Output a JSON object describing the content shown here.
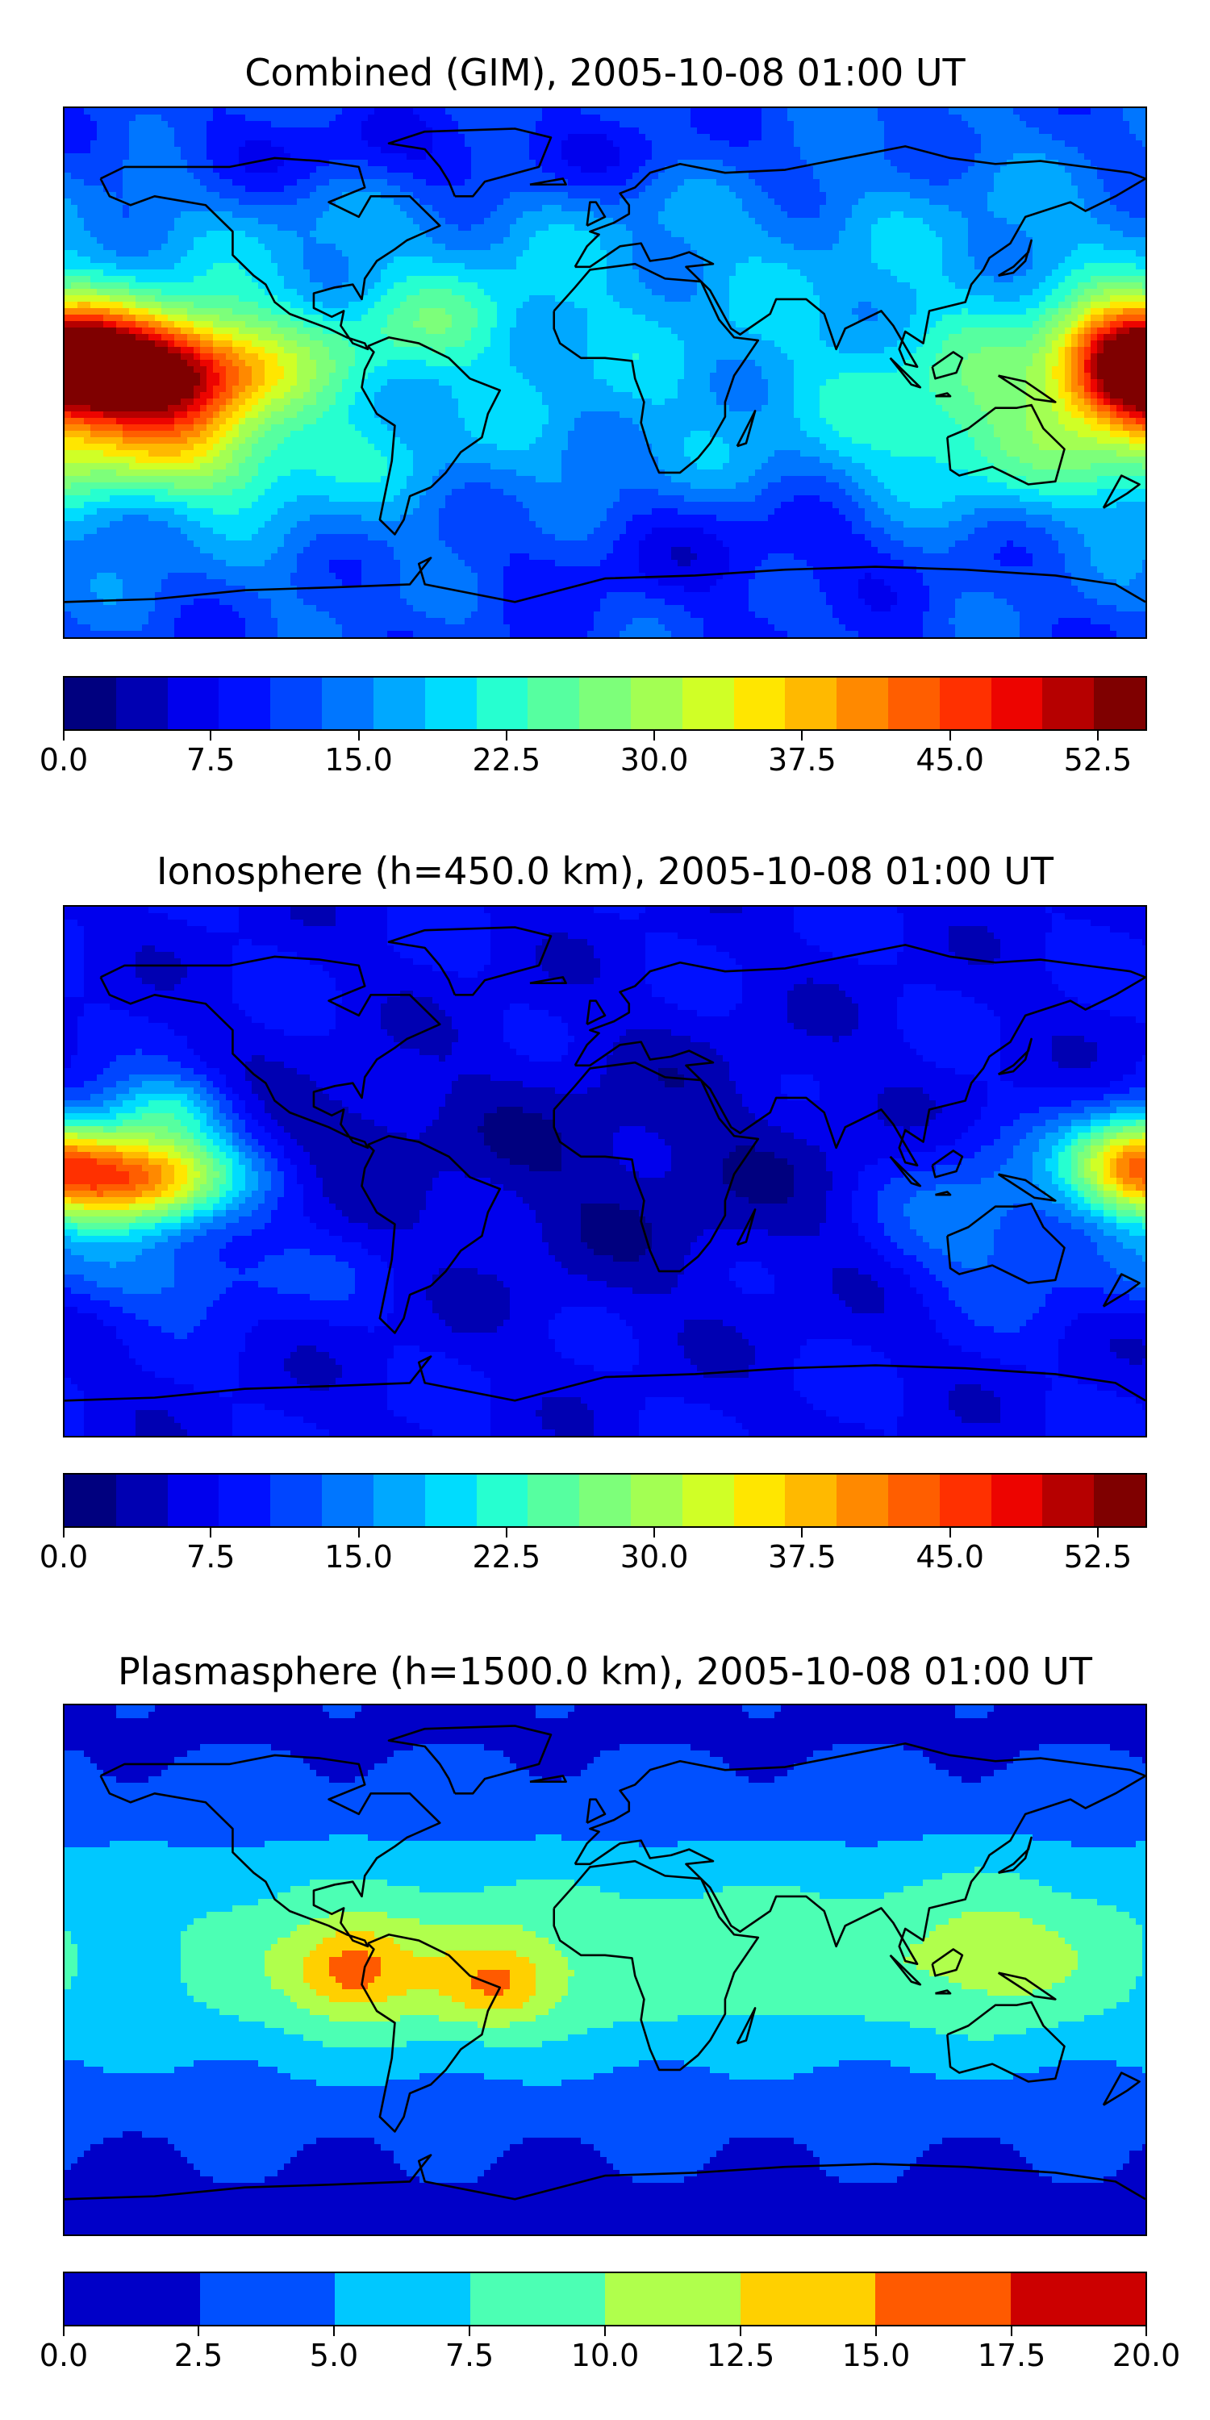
{
  "chart_data": [
    {
      "type": "heatmap",
      "title": "Combined (GIM), 2005-10-08 01:00 UT",
      "map": "world",
      "xlim": [
        -180,
        180
      ],
      "ylim": [
        -90,
        90
      ],
      "colorbar": {
        "vmin": 0,
        "vmax": 55,
        "levels": [
          0,
          2.5,
          5,
          7.5,
          10,
          12.5,
          15,
          17.5,
          20,
          22.5,
          25,
          27.5,
          30,
          32.5,
          35,
          37.5,
          40,
          42.5,
          45,
          47.5,
          50,
          52.5,
          55
        ],
        "ticks": [
          "0.0",
          "7.5",
          "15.0",
          "22.5",
          "30.0",
          "37.5",
          "45.0",
          "52.5"
        ],
        "tick_values": [
          0,
          7.5,
          15,
          22.5,
          30,
          37.5,
          45,
          52.5
        ],
        "colors": [
          "#00007f",
          "#0000b2",
          "#0000ed",
          "#0010ff",
          "#0045ff",
          "#0076ff",
          "#00a8ff",
          "#00dcfe",
          "#26ffd0",
          "#56ffa0",
          "#7dff7a",
          "#a3ff53",
          "#d0ff26",
          "#ffe600",
          "#ffb900",
          "#ff8900",
          "#ff5e00",
          "#ff3000",
          "#ed0400",
          "#b60000",
          "#7f0000"
        ]
      },
      "features": [
        {
          "lon": -150,
          "lat": 0,
          "value": 52,
          "spread_lon": 25,
          "spread_lat": 14
        },
        {
          "lon": 175,
          "lat": 3,
          "value": 42,
          "spread_lon": 18,
          "spread_lat": 14
        },
        {
          "lon": -160,
          "lat": -30,
          "value": 20,
          "spread_lon": 40,
          "spread_lat": 14
        }
      ]
    },
    {
      "type": "heatmap",
      "title": "Ionosphere  (h=450.0 km), 2005-10-08 01:00 UT",
      "map": "world",
      "xlim": [
        -180,
        180
      ],
      "ylim": [
        -90,
        90
      ],
      "colorbar": {
        "vmin": 0,
        "vmax": 55,
        "levels": [
          0,
          2.5,
          5,
          7.5,
          10,
          12.5,
          15,
          17.5,
          20,
          22.5,
          25,
          27.5,
          30,
          32.5,
          35,
          37.5,
          40,
          42.5,
          45,
          47.5,
          50,
          52.5,
          55
        ],
        "ticks": [
          "0.0",
          "7.5",
          "15.0",
          "22.5",
          "30.0",
          "37.5",
          "45.0",
          "52.5"
        ],
        "tick_values": [
          0,
          7.5,
          15,
          22.5,
          30,
          37.5,
          45,
          52.5
        ],
        "colors": [
          "#00007f",
          "#0000b2",
          "#0000ed",
          "#0010ff",
          "#0045ff",
          "#0076ff",
          "#00a8ff",
          "#00dcfe",
          "#26ffd0",
          "#56ffa0",
          "#7dff7a",
          "#a3ff53",
          "#d0ff26",
          "#ffe600",
          "#ffb900",
          "#ff8900",
          "#ff5e00",
          "#ff3000",
          "#ed0400",
          "#b60000",
          "#7f0000"
        ]
      },
      "features": [
        {
          "lon": -155,
          "lat": -2,
          "value": 40,
          "spread_lon": 22,
          "spread_lat": 12
        },
        {
          "lon": 175,
          "lat": 3,
          "value": 32,
          "spread_lon": 16,
          "spread_lat": 12
        },
        {
          "lon": -150,
          "lat": 20,
          "value": 30,
          "spread_lon": 15,
          "spread_lat": 10
        }
      ]
    },
    {
      "type": "heatmap",
      "title": "Plasmasphere (h=1500.0 km), 2005-10-08 01:00 UT",
      "map": "world",
      "xlim": [
        -180,
        180
      ],
      "ylim": [
        -90,
        90
      ],
      "colorbar": {
        "vmin": 0,
        "vmax": 20,
        "levels": [
          0,
          2.5,
          5,
          7.5,
          10,
          12.5,
          15,
          17.5,
          20
        ],
        "ticks": [
          "0.0",
          "2.5",
          "5.0",
          "7.5",
          "10.0",
          "12.5",
          "15.0",
          "17.5",
          "20.0"
        ],
        "tick_values": [
          0,
          2.5,
          5,
          7.5,
          10,
          12.5,
          15,
          17.5,
          20
        ],
        "colors": [
          "#0000c8",
          "#0050ff",
          "#00c8ff",
          "#4cffb4",
          "#b0ff4c",
          "#ffd000",
          "#ff5a00",
          "#cc0000"
        ]
      },
      "features": [
        {
          "lon": -85,
          "lat": 0,
          "value": 16,
          "spread_lon": 10,
          "spread_lat": 8
        },
        {
          "lon": -35,
          "lat": -5,
          "value": 15,
          "spread_lon": 10,
          "spread_lat": 8
        },
        {
          "lon": 130,
          "lat": 5,
          "value": 10,
          "spread_lon": 20,
          "spread_lat": 15
        }
      ]
    }
  ]
}
